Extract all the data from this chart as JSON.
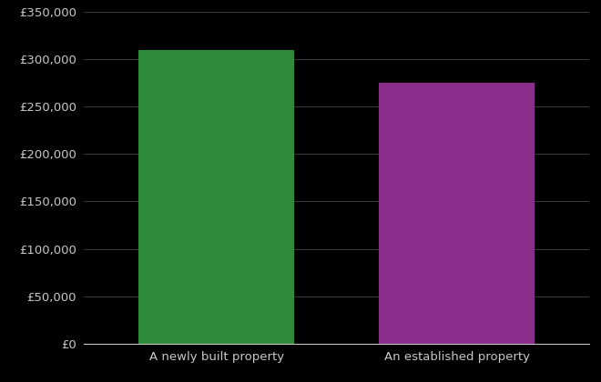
{
  "categories": [
    "A newly built property",
    "An established property"
  ],
  "values": [
    309000,
    275000
  ],
  "bar_colors": [
    "#2e8b3a",
    "#8b2e8b"
  ],
  "background_color": "#000000",
  "text_color": "#c8c8c8",
  "grid_color": "#3a3a3a",
  "ylim": [
    0,
    350000
  ],
  "ytick_interval": 50000,
  "bar_width": 0.65,
  "figsize": [
    6.6,
    4.2
  ],
  "dpi": 100
}
